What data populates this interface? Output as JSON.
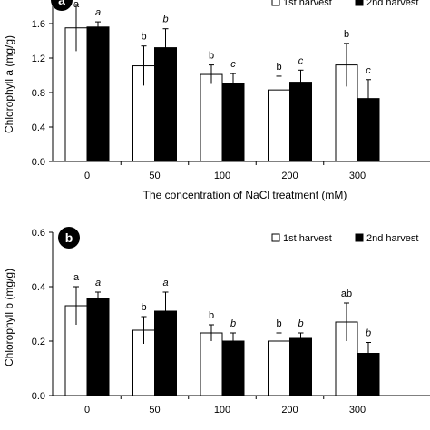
{
  "chart_data": [
    {
      "panel": "a",
      "type": "bar",
      "ylabel": "Chlorophyll a (mg/g)",
      "xlabel": "The concentration of NaCl treatment (mM)",
      "categories": [
        "0",
        "50",
        "100",
        "200",
        "300"
      ],
      "ylim": [
        0,
        2.0
      ],
      "yticks": [
        "0.0",
        "0.4",
        "0.8",
        "1.2",
        "1.6",
        "2.0"
      ],
      "series": [
        {
          "name": "1st harvest",
          "fill": "#ffffff",
          "values": [
            1.55,
            1.11,
            1.01,
            0.83,
            1.12
          ],
          "errors": [
            0.27,
            0.23,
            0.11,
            0.16,
            0.25
          ],
          "letters": [
            "a",
            "b",
            "b",
            "b",
            "b"
          ],
          "italic": false
        },
        {
          "name": "2nd harvest",
          "fill": "#000000",
          "values": [
            1.56,
            1.32,
            0.9,
            0.92,
            0.73
          ],
          "errors": [
            0.06,
            0.22,
            0.12,
            0.14,
            0.22
          ],
          "letters": [
            "a",
            "b",
            "c",
            "c",
            "c"
          ],
          "italic": true
        }
      ]
    },
    {
      "panel": "b",
      "type": "bar",
      "ylabel": "Chlorophyll b (mg/g)",
      "xlabel": "",
      "categories": [
        "0",
        "50",
        "100",
        "200",
        "300"
      ],
      "ylim": [
        0,
        0.6
      ],
      "yticks": [
        "0.0",
        "0.2",
        "0.4",
        "0.6"
      ],
      "series": [
        {
          "name": "1st harvest",
          "fill": "#ffffff",
          "values": [
            0.33,
            0.24,
            0.23,
            0.2,
            0.27
          ],
          "errors": [
            0.07,
            0.05,
            0.03,
            0.03,
            0.07
          ],
          "letters": [
            "a",
            "b",
            "b",
            "b",
            "ab"
          ],
          "italic": false
        },
        {
          "name": "2nd harvest",
          "fill": "#000000",
          "values": [
            0.355,
            0.31,
            0.2,
            0.21,
            0.155
          ],
          "errors": [
            0.025,
            0.07,
            0.03,
            0.02,
            0.04
          ],
          "letters": [
            "a",
            "a",
            "b",
            "b",
            "b"
          ],
          "italic": true
        }
      ]
    }
  ]
}
